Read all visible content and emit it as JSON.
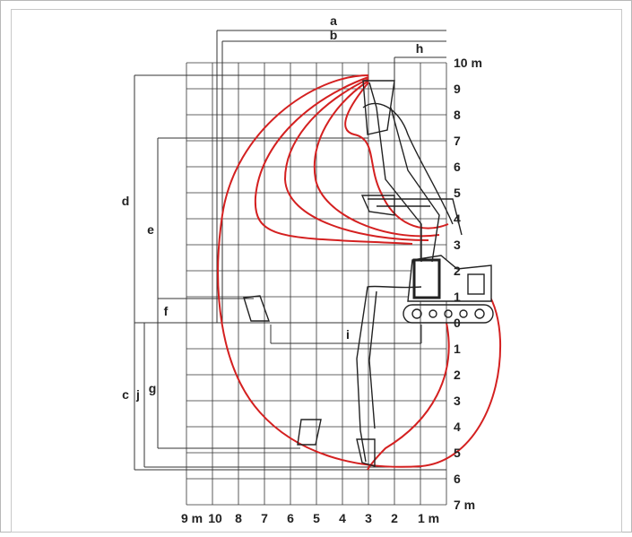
{
  "diagram": {
    "x_axis": {
      "tick_labels": [
        {
          "value": 1,
          "label": "1 m"
        },
        {
          "value": 2,
          "label": "2"
        },
        {
          "value": 3,
          "label": "3"
        },
        {
          "value": 4,
          "label": "4"
        },
        {
          "value": 5,
          "label": "5"
        },
        {
          "value": 6,
          "label": "6"
        },
        {
          "value": 7,
          "label": "7"
        },
        {
          "value": 8,
          "label": "8"
        },
        {
          "value": 9,
          "label": "9 m"
        },
        {
          "value": 10,
          "label": "10"
        }
      ]
    },
    "y_axis": {
      "tick_labels": [
        {
          "value": 10,
          "label": "10 m"
        },
        {
          "value": 9,
          "label": "9"
        },
        {
          "value": 8,
          "label": "8"
        },
        {
          "value": 7,
          "label": "7"
        },
        {
          "value": 6,
          "label": "6"
        },
        {
          "value": 5,
          "label": "5"
        },
        {
          "value": 4,
          "label": "4"
        },
        {
          "value": 3,
          "label": "3"
        },
        {
          "value": 2,
          "label": "2"
        },
        {
          "value": 1,
          "label": "1"
        },
        {
          "value": 0,
          "label": "0"
        },
        {
          "value": -1,
          "label": "1"
        },
        {
          "value": -2,
          "label": "2"
        },
        {
          "value": -3,
          "label": "3"
        },
        {
          "value": -4,
          "label": "4"
        },
        {
          "value": -5,
          "label": "5"
        },
        {
          "value": -6,
          "label": "6"
        },
        {
          "value": -7,
          "label": "7 m"
        }
      ]
    },
    "dimension_labels": {
      "a": "a",
      "b": "b",
      "c": "c",
      "d": "d",
      "e": "e",
      "f": "f",
      "g": "g",
      "h": "h",
      "i": "i",
      "j": "j"
    },
    "colors": {
      "grid": "#333333",
      "envelope": "#d42020",
      "machine": "#222222",
      "frame": "#b8b8b8"
    }
  }
}
